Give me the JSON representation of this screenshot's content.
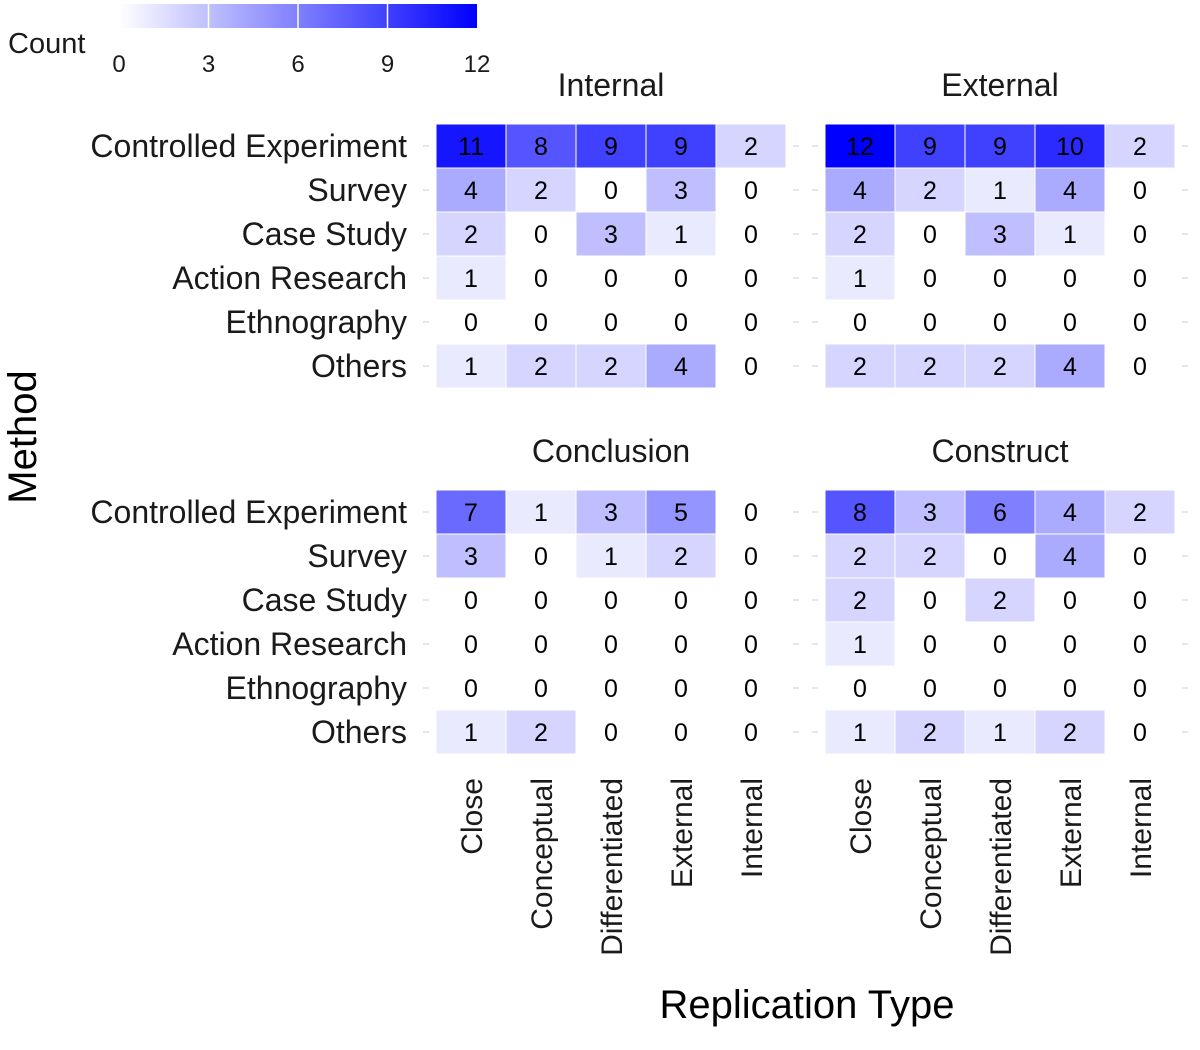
{
  "chart_data": {
    "type": "heatmap",
    "xlabel": "Replication Type",
    "ylabel": "Method",
    "x_categories": [
      "Close",
      "Conceptual",
      "Differentiated",
      "External",
      "Internal"
    ],
    "y_categories": [
      "Controlled Experiment",
      "Survey",
      "Case Study",
      "Action Research",
      "Ethnography",
      "Others"
    ],
    "legend": {
      "title": "Count",
      "ticks": [
        0,
        3,
        6,
        9,
        12
      ],
      "range": [
        0,
        12
      ],
      "low_color": "#ffffff",
      "high_color": "#0000ff",
      "position": "top-left"
    },
    "facets": [
      {
        "title": "Internal",
        "values": [
          [
            11,
            8,
            9,
            9,
            2
          ],
          [
            4,
            2,
            0,
            3,
            0
          ],
          [
            2,
            0,
            3,
            1,
            0
          ],
          [
            1,
            0,
            0,
            0,
            0
          ],
          [
            0,
            0,
            0,
            0,
            0
          ],
          [
            1,
            2,
            2,
            4,
            0
          ]
        ]
      },
      {
        "title": "External",
        "values": [
          [
            12,
            9,
            9,
            10,
            2
          ],
          [
            4,
            2,
            1,
            4,
            0
          ],
          [
            2,
            0,
            3,
            1,
            0
          ],
          [
            1,
            0,
            0,
            0,
            0
          ],
          [
            0,
            0,
            0,
            0,
            0
          ],
          [
            2,
            2,
            2,
            4,
            0
          ]
        ]
      },
      {
        "title": "Conclusion",
        "values": [
          [
            7,
            1,
            3,
            5,
            0
          ],
          [
            3,
            0,
            1,
            2,
            0
          ],
          [
            0,
            0,
            0,
            0,
            0
          ],
          [
            0,
            0,
            0,
            0,
            0
          ],
          [
            0,
            0,
            0,
            0,
            0
          ],
          [
            1,
            2,
            0,
            0,
            0
          ]
        ]
      },
      {
        "title": "Construct",
        "values": [
          [
            8,
            3,
            6,
            4,
            2
          ],
          [
            2,
            2,
            0,
            4,
            0
          ],
          [
            2,
            0,
            2,
            0,
            0
          ],
          [
            1,
            0,
            0,
            0,
            0
          ],
          [
            0,
            0,
            0,
            0,
            0
          ],
          [
            1,
            2,
            1,
            2,
            0
          ]
        ]
      }
    ],
    "grid": false
  }
}
